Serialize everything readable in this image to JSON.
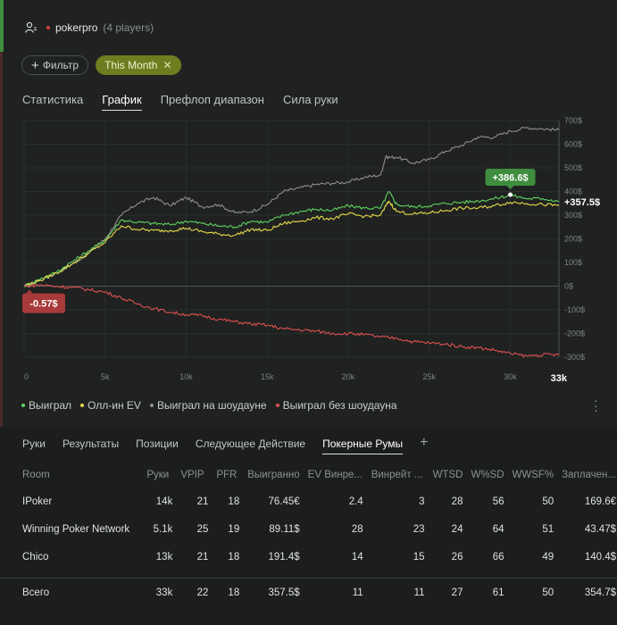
{
  "header": {
    "player_name": "pokerpro",
    "player_count": "(4 players)"
  },
  "filters": {
    "add_label": "Фильтр",
    "active_label": "This Month"
  },
  "tabs": [
    {
      "label": "Статистика",
      "active": false
    },
    {
      "label": "График",
      "active": true
    },
    {
      "label": "Префлоп диапазон",
      "active": false
    },
    {
      "label": "Сила руки",
      "active": false
    }
  ],
  "chart_data": {
    "type": "line",
    "x_unit": "hands",
    "xlim": [
      0,
      33000
    ],
    "ylim": [
      -300,
      700
    ],
    "x_ticks": [
      {
        "value": 0,
        "label": "0"
      },
      {
        "value": 5000,
        "label": "5k"
      },
      {
        "value": 10000,
        "label": "10k"
      },
      {
        "value": 15000,
        "label": "15k"
      },
      {
        "value": 20000,
        "label": "20k"
      },
      {
        "value": 25000,
        "label": "25k"
      },
      {
        "value": 30000,
        "label": "30k"
      }
    ],
    "x_end_label": "33k",
    "y_ticks": [
      {
        "value": 700,
        "label": "700$"
      },
      {
        "value": 600,
        "label": "600$"
      },
      {
        "value": 500,
        "label": "500$"
      },
      {
        "value": 400,
        "label": "400$"
      },
      {
        "value": 300,
        "label": "300$"
      },
      {
        "value": 200,
        "label": "200$"
      },
      {
        "value": 100,
        "label": "100$"
      },
      {
        "value": 0,
        "label": "0$"
      },
      {
        "value": -100,
        "label": "-100$"
      },
      {
        "value": -200,
        "label": "-200$"
      },
      {
        "value": -300,
        "label": "-300$"
      }
    ],
    "series": [
      {
        "name": "Выиграл на шоудауне",
        "color": "#8e8e8e",
        "x": [
          0,
          1000,
          2000,
          3000,
          4000,
          5000,
          6000,
          7000,
          8000,
          9000,
          10000,
          11000,
          12000,
          13000,
          14000,
          15000,
          16000,
          17000,
          18000,
          19000,
          20000,
          21000,
          22000,
          22300,
          23000,
          24000,
          25000,
          26000,
          27000,
          28000,
          29000,
          30000,
          31000,
          32000,
          33000
        ],
        "y": [
          0,
          25,
          55,
          95,
          140,
          200,
          300,
          350,
          375,
          340,
          375,
          335,
          345,
          310,
          315,
          345,
          400,
          415,
          430,
          435,
          440,
          460,
          470,
          545,
          545,
          520,
          535,
          570,
          595,
          630,
          630,
          655,
          670,
          665,
          660
        ]
      },
      {
        "name": "Выиграл",
        "color": "#5fd35f",
        "x": [
          0,
          1000,
          2000,
          3000,
          4000,
          5000,
          6000,
          7000,
          8000,
          9000,
          10000,
          11000,
          12000,
          13000,
          14000,
          15000,
          16000,
          17000,
          18000,
          19000,
          20000,
          21000,
          22000,
          22500,
          23000,
          24000,
          25000,
          26000,
          27000,
          28000,
          29000,
          30000,
          31000,
          32000,
          33000
        ],
        "y": [
          0,
          30,
          60,
          105,
          150,
          195,
          280,
          270,
          265,
          260,
          275,
          265,
          255,
          250,
          275,
          270,
          300,
          315,
          325,
          320,
          340,
          330,
          330,
          400,
          345,
          335,
          340,
          350,
          355,
          360,
          370,
          385,
          370,
          370,
          360
        ]
      },
      {
        "name": "Олл-ин EV",
        "color": "#e6d94a",
        "x": [
          0,
          1000,
          2000,
          3000,
          4000,
          5000,
          6000,
          7000,
          8000,
          9000,
          10000,
          11000,
          12000,
          13000,
          14000,
          15000,
          16000,
          17000,
          18000,
          19000,
          20000,
          21000,
          22000,
          22500,
          23000,
          24000,
          25000,
          26000,
          27000,
          28000,
          29000,
          30000,
          31000,
          32000,
          33000
        ],
        "y": [
          0,
          25,
          55,
          95,
          140,
          185,
          255,
          240,
          235,
          235,
          245,
          230,
          220,
          215,
          240,
          235,
          265,
          275,
          290,
          285,
          305,
          295,
          300,
          360,
          315,
          305,
          310,
          320,
          330,
          330,
          340,
          355,
          350,
          345,
          340
        ]
      },
      {
        "name": "Выиграл без шоудауна",
        "color": "#e05050",
        "x": [
          0,
          1000,
          2000,
          3000,
          4000,
          5000,
          6000,
          7000,
          8000,
          9000,
          10000,
          11000,
          12000,
          13000,
          14000,
          15000,
          16000,
          17000,
          18000,
          19000,
          20000,
          21000,
          22000,
          23000,
          24000,
          25000,
          26000,
          27000,
          28000,
          29000,
          30000,
          31000,
          32000,
          33000
        ],
        "y": [
          0,
          5,
          -1,
          -5,
          -15,
          -25,
          -50,
          -75,
          -95,
          -110,
          -120,
          -125,
          -140,
          -150,
          -160,
          -165,
          -180,
          -185,
          -190,
          -200,
          -200,
          -205,
          -215,
          -220,
          -235,
          -240,
          -245,
          -255,
          -260,
          -270,
          -285,
          -295,
          -290,
          -290
        ]
      }
    ],
    "annotations": [
      {
        "label": "+386.6$",
        "x": 30000,
        "y": 386.6,
        "style": "green-badge"
      },
      {
        "label": "+357.5$",
        "x": 33000,
        "y": 357.5,
        "style": "text"
      },
      {
        "label": "-0.57$",
        "x": 0,
        "y": -0.57,
        "style": "red-badge"
      }
    ],
    "legend_position": "bottom-left"
  },
  "legend": [
    {
      "label": "Выиграл",
      "color": "#5fd35f"
    },
    {
      "label": "Олл-ин EV",
      "color": "#e6d94a"
    },
    {
      "label": "Выиграл на шоудауне",
      "color": "#8e8e8e"
    },
    {
      "label": "Выиграл без шоудауна",
      "color": "#e05050"
    }
  ],
  "bottom_tabs": [
    {
      "label": "Руки",
      "active": false
    },
    {
      "label": "Результаты",
      "active": false
    },
    {
      "label": "Позиции",
      "active": false
    },
    {
      "label": "Следующее Действие",
      "active": false
    },
    {
      "label": "Покерные Румы",
      "active": true
    }
  ],
  "table": {
    "headers": [
      "Room",
      "Руки",
      "VPIP",
      "PFR",
      "Выигранно",
      "EV Винре...",
      "Винрейт ...",
      "WTSD",
      "W%SD",
      "WWSF%",
      "Заплачен..."
    ],
    "rows": [
      [
        "IPoker",
        "14k",
        "21",
        "18",
        "76.45€",
        "2.4",
        "3",
        "28",
        "56",
        "50",
        "169.6€"
      ],
      [
        "Winning Poker Network",
        "5.1k",
        "25",
        "19",
        "89.11$",
        "28",
        "23",
        "24",
        "64",
        "51",
        "43.47$"
      ],
      [
        "Chico",
        "13k",
        "21",
        "18",
        "191.4$",
        "14",
        "15",
        "26",
        "66",
        "49",
        "140.4$"
      ]
    ],
    "total": [
      "Всего",
      "33k",
      "22",
      "18",
      "357.5$",
      "11",
      "11",
      "27",
      "61",
      "50",
      "354.7$"
    ]
  }
}
